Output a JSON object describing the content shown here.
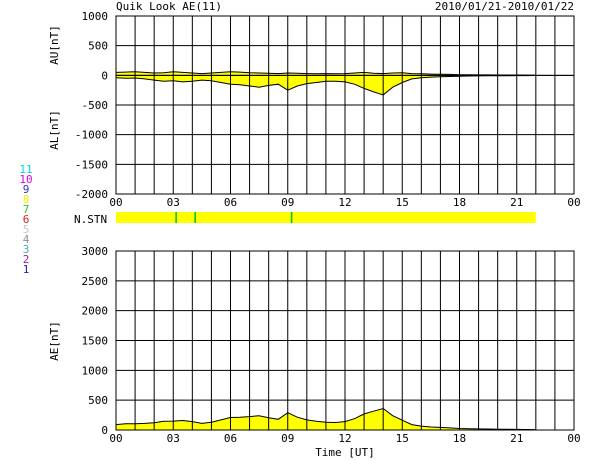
{
  "header": {
    "title": "Quik Look AE(11)",
    "date_range": "2010/01/21-2010/01/22"
  },
  "colors": {
    "fill": "#ffff00",
    "grid": "#000000",
    "station_marker": "#00c000"
  },
  "station_legend": [
    {
      "label": "11",
      "color": "#00d8d8"
    },
    {
      "label": "10",
      "color": "#e000e0"
    },
    {
      "label": "9",
      "color": "#3030d0"
    },
    {
      "label": "8",
      "color": "#f0f000"
    },
    {
      "label": "7",
      "color": "#30c030"
    },
    {
      "label": "6",
      "color": "#e02020"
    },
    {
      "label": "5",
      "color": "#c8c8c8"
    },
    {
      "label": "4",
      "color": "#909090"
    },
    {
      "label": "3",
      "color": "#40b0b0"
    },
    {
      "label": "2",
      "color": "#a020a0"
    },
    {
      "label": "1",
      "color": "#2020c0"
    }
  ],
  "chart_data": [
    {
      "type": "area",
      "ylabel_upper": "AU[nT]",
      "ylabel_lower": "AL[nT]",
      "ylim": [
        -2000,
        1000
      ],
      "yticks": [
        "1000",
        "500",
        "0",
        "-500",
        "-1000",
        "-1500",
        "-2000"
      ],
      "xlim": [
        0,
        24
      ],
      "xticks": [
        "00",
        "03",
        "06",
        "09",
        "12",
        "15",
        "18",
        "21",
        "00"
      ],
      "x": [
        0,
        0.5,
        1,
        1.5,
        2,
        2.5,
        3,
        3.5,
        4,
        4.5,
        5,
        5.5,
        6,
        6.5,
        7,
        7.5,
        8,
        8.5,
        9,
        9.5,
        10,
        10.5,
        11,
        11.5,
        12,
        12.5,
        13,
        13.5,
        14,
        14.5,
        15,
        15.5,
        16,
        16.5,
        17,
        17.5,
        18,
        18.5,
        19,
        19.5,
        20,
        20.5,
        21,
        21.5,
        22
      ],
      "series": [
        {
          "role": "AU",
          "values": [
            50,
            55,
            60,
            50,
            40,
            45,
            60,
            50,
            40,
            30,
            40,
            50,
            60,
            55,
            45,
            40,
            35,
            30,
            40,
            35,
            30,
            25,
            30,
            25,
            30,
            40,
            50,
            35,
            30,
            40,
            45,
            30,
            25,
            20,
            18,
            15,
            10,
            10,
            8,
            8,
            6,
            5,
            5,
            4,
            3
          ]
        },
        {
          "role": "AL",
          "values": [
            -40,
            -50,
            -45,
            -60,
            -80,
            -100,
            -90,
            -110,
            -100,
            -80,
            -90,
            -120,
            -150,
            -160,
            -180,
            -200,
            -170,
            -150,
            -250,
            -180,
            -140,
            -120,
            -100,
            -100,
            -110,
            -150,
            -220,
            -280,
            -330,
            -200,
            -120,
            -60,
            -40,
            -30,
            -25,
            -20,
            -15,
            -12,
            -10,
            -8,
            -8,
            -6,
            -5,
            -4,
            -3
          ]
        }
      ]
    },
    {
      "type": "bar",
      "label": "N.STN",
      "xlim": [
        0,
        24
      ],
      "coverage": [
        0,
        22
      ],
      "markers": [
        3.15,
        4.15,
        9.2
      ]
    },
    {
      "type": "area",
      "ylabel": "AE[nT]",
      "xlabel": "Time [UT]",
      "ylim": [
        0,
        3000
      ],
      "yticks": [
        "3000",
        "2500",
        "2000",
        "1500",
        "1000",
        "500",
        "0"
      ],
      "xlim": [
        0,
        24
      ],
      "xticks": [
        "00",
        "03",
        "06",
        "09",
        "12",
        "15",
        "18",
        "21",
        "00"
      ],
      "x": [
        0,
        0.5,
        1,
        1.5,
        2,
        2.5,
        3,
        3.5,
        4,
        4.5,
        5,
        5.5,
        6,
        6.5,
        7,
        7.5,
        8,
        8.5,
        9,
        9.5,
        10,
        10.5,
        11,
        11.5,
        12,
        12.5,
        13,
        13.5,
        14,
        14.5,
        15,
        15.5,
        16,
        16.5,
        17,
        17.5,
        18,
        18.5,
        19,
        19.5,
        20,
        20.5,
        21,
        21.5,
        22
      ],
      "series": [
        {
          "role": "AE",
          "values": [
            90,
            105,
            105,
            110,
            120,
            145,
            150,
            160,
            140,
            110,
            130,
            170,
            210,
            215,
            225,
            240,
            205,
            180,
            290,
            215,
            170,
            145,
            130,
            125,
            140,
            190,
            270,
            315,
            360,
            240,
            165,
            90,
            65,
            50,
            43,
            35,
            25,
            22,
            18,
            16,
            14,
            11,
            10,
            8,
            6
          ]
        }
      ]
    }
  ]
}
